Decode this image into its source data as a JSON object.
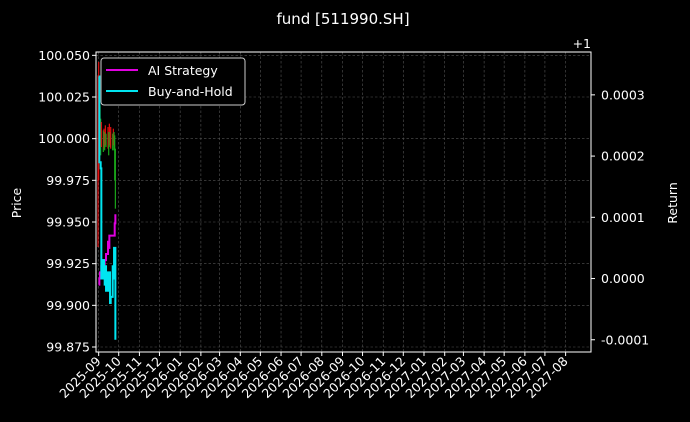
{
  "chart_data": {
    "type": "line",
    "title": "fund [511990.SH]",
    "ylabel_left": "Price",
    "ylabel_right": "Return",
    "right_axis_offset_label": "+1",
    "x_tick_labels": [
      "2025-09",
      "2025-10",
      "2025-11",
      "2025-12",
      "2026-01",
      "2026-02",
      "2026-03",
      "2026-04",
      "2026-05",
      "2026-06",
      "2026-07",
      "2026-08",
      "2026-09",
      "2026-10",
      "2026-11",
      "2026-12",
      "2027-01",
      "2027-02",
      "2027-03",
      "2027-04",
      "2027-05",
      "2027-06",
      "2027-07",
      "2027-08"
    ],
    "ylim_left": [
      99.872,
      100.052
    ],
    "y_ticks_left": [
      "99.875",
      "99.900",
      "99.925",
      "99.950",
      "99.975",
      "100.000",
      "100.025",
      "100.050"
    ],
    "ylim_right": [
      -0.00012,
      0.00037
    ],
    "y_ticks_right": [
      "-0.0001",
      "0.0000",
      "0.0001",
      "0.0002",
      "0.0003"
    ],
    "grid": true,
    "legend_position": "top-left",
    "colors": {
      "background": "#000000",
      "text": "#ffffff",
      "grid": "#555555",
      "ai_strategy": "#e000e0",
      "buy_and_hold": "#00e5f0",
      "candle_up": "#1aa51a",
      "candle_down": "#e01010"
    },
    "series": [
      {
        "name": "AI Strategy",
        "axis": "right",
        "points": [
          [
            "2025-09-01",
            -1e-05
          ],
          [
            "2025-09-02",
            0.0
          ],
          [
            "2025-09-03",
            1e-05
          ],
          [
            "2025-09-04",
            0.0
          ],
          [
            "2025-09-05",
            2e-05
          ],
          [
            "2025-09-08",
            3e-05
          ],
          [
            "2025-09-09",
            2e-05
          ],
          [
            "2025-09-10",
            3e-05
          ],
          [
            "2025-09-11",
            3e-05
          ],
          [
            "2025-09-12",
            4e-05
          ],
          [
            "2025-09-15",
            6e-05
          ],
          [
            "2025-09-16",
            5e-05
          ],
          [
            "2025-09-17",
            7e-05
          ],
          [
            "2025-09-18",
            7e-05
          ],
          [
            "2025-09-19",
            7e-05
          ],
          [
            "2025-09-22",
            7e-05
          ],
          [
            "2025-09-23",
            7e-05
          ],
          [
            "2025-09-24",
            7e-05
          ],
          [
            "2025-09-25",
            9e-05
          ],
          [
            "2025-09-26",
            0.000105
          ]
        ]
      },
      {
        "name": "Buy-and-Hold",
        "axis": "right",
        "points": [
          [
            "2025-09-01",
            0.00033
          ],
          [
            "2025-09-02",
            0.00019
          ],
          [
            "2025-09-03",
            0.00019
          ],
          [
            "2025-09-04",
            0.00018
          ],
          [
            "2025-09-05",
            0.0
          ],
          [
            "2025-09-08",
            3e-05
          ],
          [
            "2025-09-09",
            1e-05
          ],
          [
            "2025-09-10",
            -1e-05
          ],
          [
            "2025-09-11",
            2e-05
          ],
          [
            "2025-09-12",
            -2e-05
          ],
          [
            "2025-09-15",
            1e-05
          ],
          [
            "2025-09-16",
            0.0
          ],
          [
            "2025-09-17",
            1e-05
          ],
          [
            "2025-09-18",
            -4e-05
          ],
          [
            "2025-09-19",
            -3e-05
          ],
          [
            "2025-09-22",
            2e-05
          ],
          [
            "2025-09-23",
            0.0
          ],
          [
            "2025-09-24",
            5e-05
          ],
          [
            "2025-09-25",
            5e-05
          ],
          [
            "2025-09-26",
            -0.0001
          ]
        ]
      }
    ],
    "candles": [
      {
        "date": "2025-08-31",
        "low": 99.935,
        "high": 100.038
      },
      {
        "date": "2025-09-01",
        "low": 99.975,
        "high": 100.046
      },
      {
        "date": "2025-09-02",
        "low": 100.0,
        "high": 100.03
      },
      {
        "date": "2025-09-03",
        "low": 99.995,
        "high": 100.02
      },
      {
        "date": "2025-09-04",
        "low": 99.99,
        "high": 100.012
      },
      {
        "date": "2025-09-05",
        "low": 99.995,
        "high": 100.01
      },
      {
        "date": "2025-09-08",
        "low": 99.992,
        "high": 100.005
      },
      {
        "date": "2025-09-09",
        "low": 99.994,
        "high": 100.006
      },
      {
        "date": "2025-09-10",
        "low": 99.993,
        "high": 100.004
      },
      {
        "date": "2025-09-11",
        "low": 99.996,
        "high": 100.008
      },
      {
        "date": "2025-09-12",
        "low": 99.995,
        "high": 100.003
      },
      {
        "date": "2025-09-15",
        "low": 99.994,
        "high": 100.007
      },
      {
        "date": "2025-09-16",
        "low": 99.99,
        "high": 100.004
      },
      {
        "date": "2025-09-17",
        "low": 99.996,
        "high": 100.009
      },
      {
        "date": "2025-09-18",
        "low": 99.995,
        "high": 100.004
      },
      {
        "date": "2025-09-19",
        "low": 99.994,
        "high": 100.007
      },
      {
        "date": "2025-09-22",
        "low": 99.993,
        "high": 100.003
      },
      {
        "date": "2025-09-23",
        "low": 99.996,
        "high": 100.006
      },
      {
        "date": "2025-09-24",
        "low": 99.993,
        "high": 100.004
      },
      {
        "date": "2025-09-25",
        "low": 99.975,
        "high": 100.002
      },
      {
        "date": "2025-09-26",
        "low": 99.958,
        "high": 99.994
      }
    ]
  }
}
